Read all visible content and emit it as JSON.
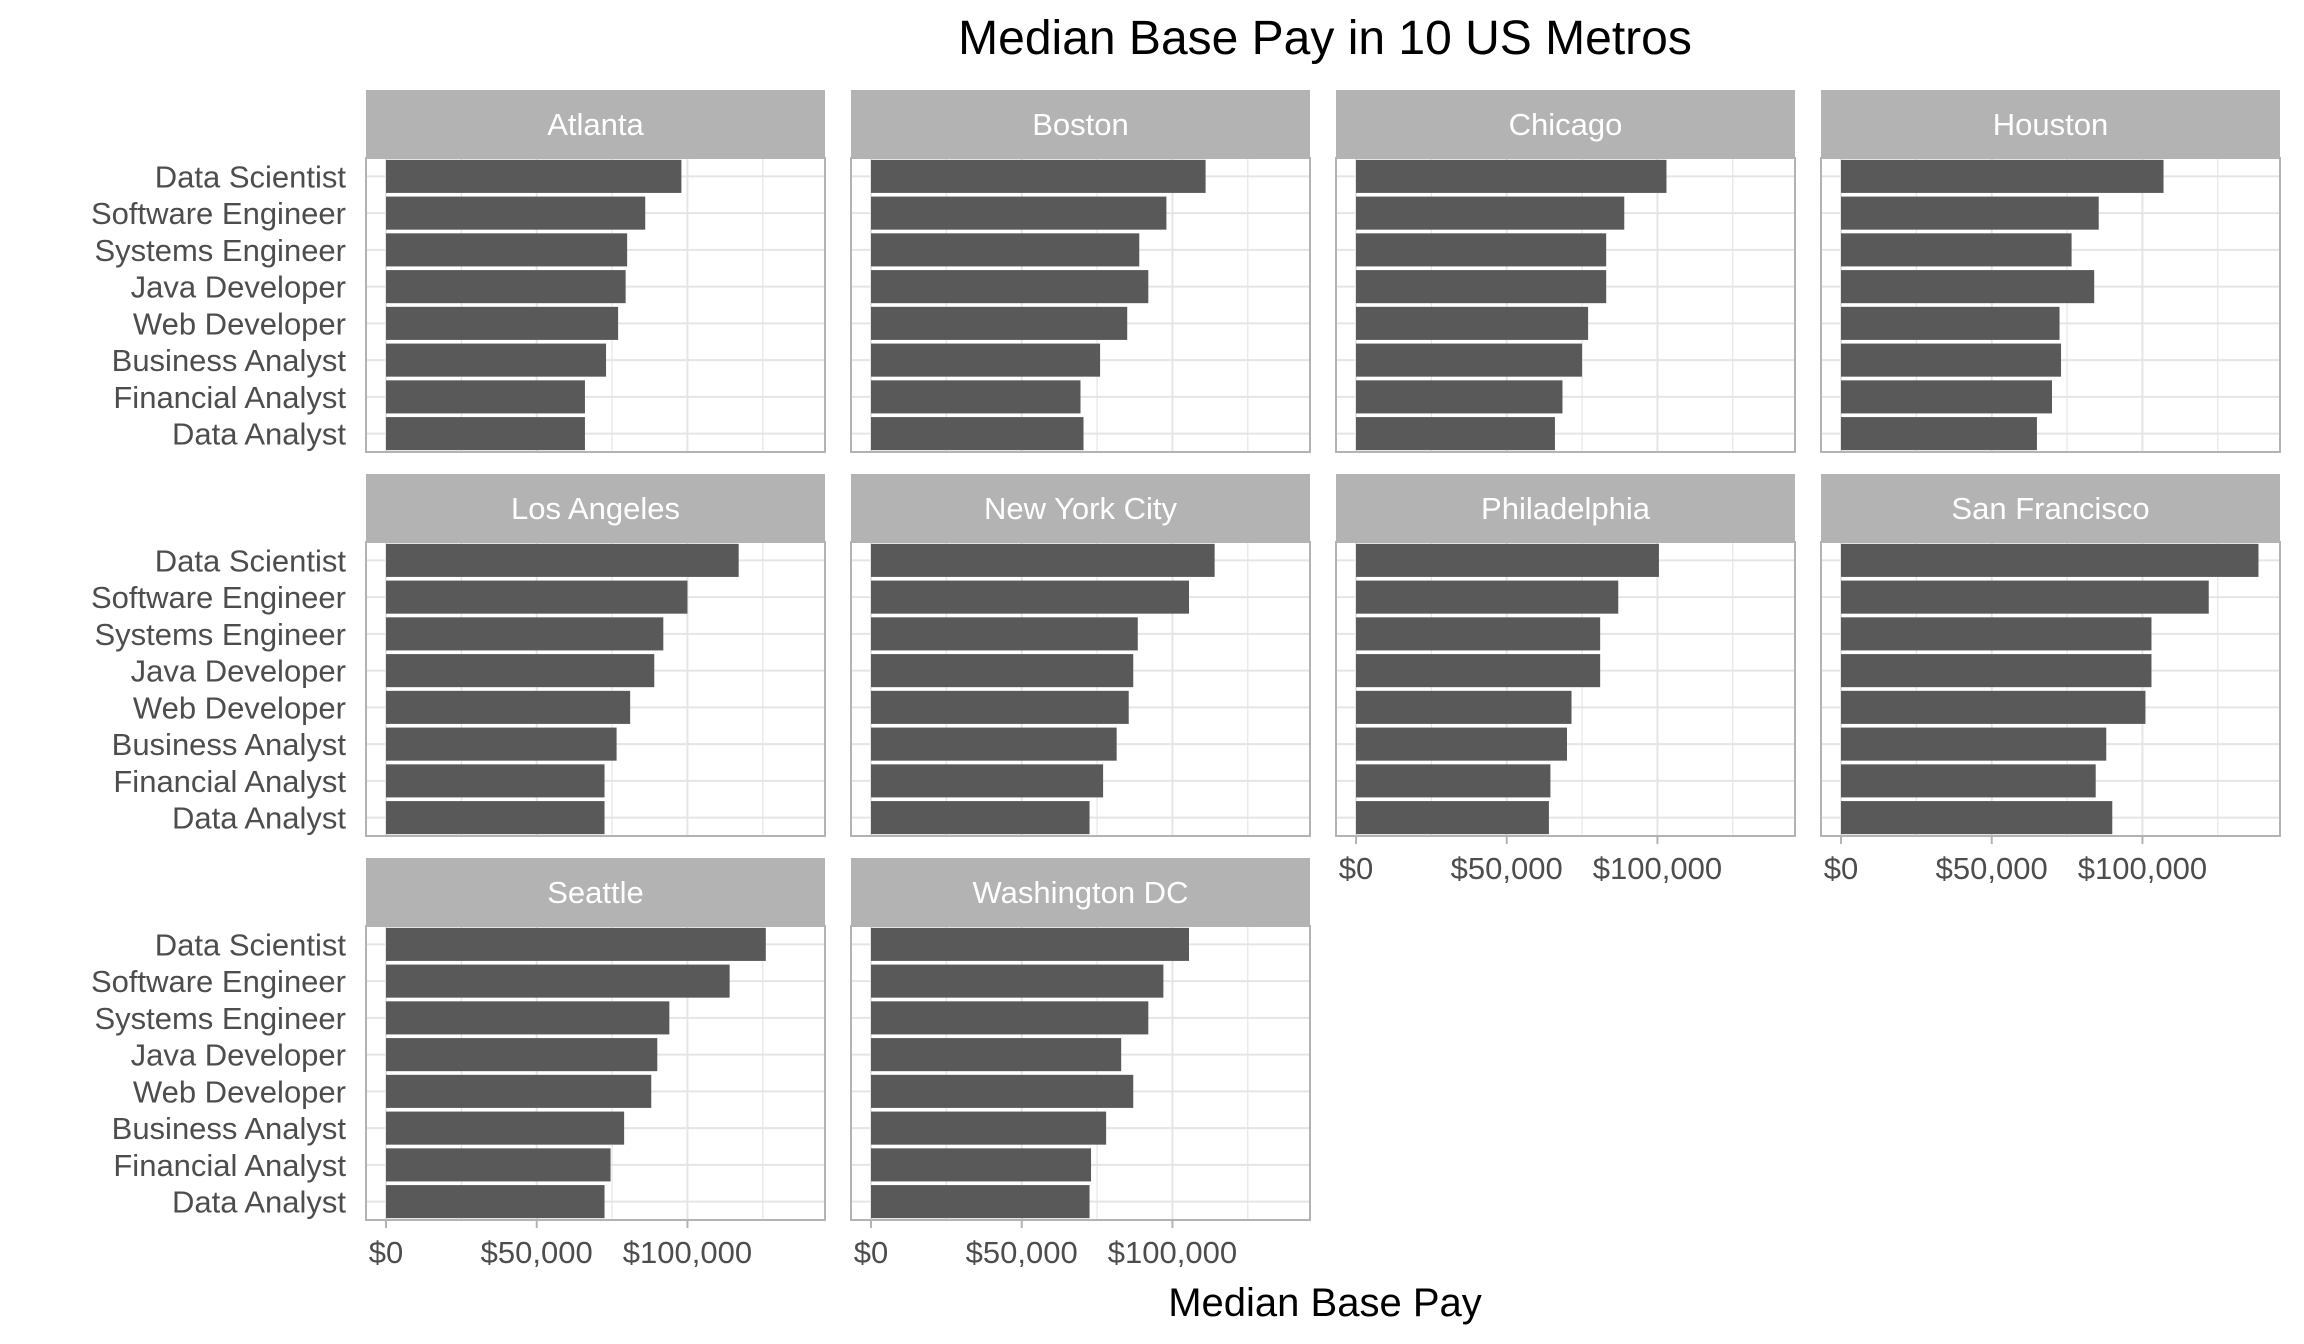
{
  "chart_data": {
    "type": "bar",
    "orientation": "horizontal",
    "title": "Median Base Pay in 10 US Metros",
    "xlabel": "Median Base Pay",
    "ylabel": "",
    "xlim": [
      0,
      140000
    ],
    "x_ticks": [
      0,
      50000,
      100000
    ],
    "x_tick_labels": [
      "$0",
      "$50,000",
      "$100,000"
    ],
    "grid": true,
    "legend": "none",
    "categories": [
      "Data Scientist",
      "Software Engineer",
      "Systems Engineer",
      "Java Developer",
      "Web Developer",
      "Business Analyst",
      "Financial Analyst",
      "Data Analyst"
    ],
    "colors": {
      "bar": "#595959",
      "strip": "#b3b3b3",
      "strip_text": "#ffffff",
      "grid": "#e5e5e5",
      "panel_border": "#b3b3b3",
      "text": "#4d4d4d",
      "title": "#000000"
    },
    "panels": [
      {
        "name": "Atlanta",
        "values": [
          98000,
          86000,
          80000,
          79500,
          77000,
          73000,
          66000,
          66000
        ]
      },
      {
        "name": "Boston",
        "values": [
          111000,
          98000,
          89000,
          92000,
          85000,
          76000,
          69500,
          70500
        ]
      },
      {
        "name": "Chicago",
        "values": [
          103000,
          89000,
          83000,
          83000,
          77000,
          75000,
          68500,
          66000
        ]
      },
      {
        "name": "Houston",
        "values": [
          107000,
          85500,
          76500,
          84000,
          72500,
          73000,
          70000,
          65000
        ]
      },
      {
        "name": "Los Angeles",
        "values": [
          117000,
          100000,
          92000,
          89000,
          81000,
          76500,
          72500,
          72500
        ]
      },
      {
        "name": "New York City",
        "values": [
          114000,
          105500,
          88500,
          87000,
          85500,
          81500,
          77000,
          72500
        ]
      },
      {
        "name": "Philadelphia",
        "values": [
          100500,
          87000,
          81000,
          81000,
          71500,
          70000,
          64500,
          64000
        ]
      },
      {
        "name": "San Francisco",
        "values": [
          138500,
          122000,
          103000,
          103000,
          101000,
          88000,
          84500,
          90000
        ]
      },
      {
        "name": "Seattle",
        "values": [
          126000,
          114000,
          94000,
          90000,
          88000,
          79000,
          74500,
          72500
        ]
      },
      {
        "name": "Washington DC",
        "values": [
          105500,
          97000,
          92000,
          83000,
          87000,
          78000,
          73000,
          72500
        ]
      }
    ]
  }
}
